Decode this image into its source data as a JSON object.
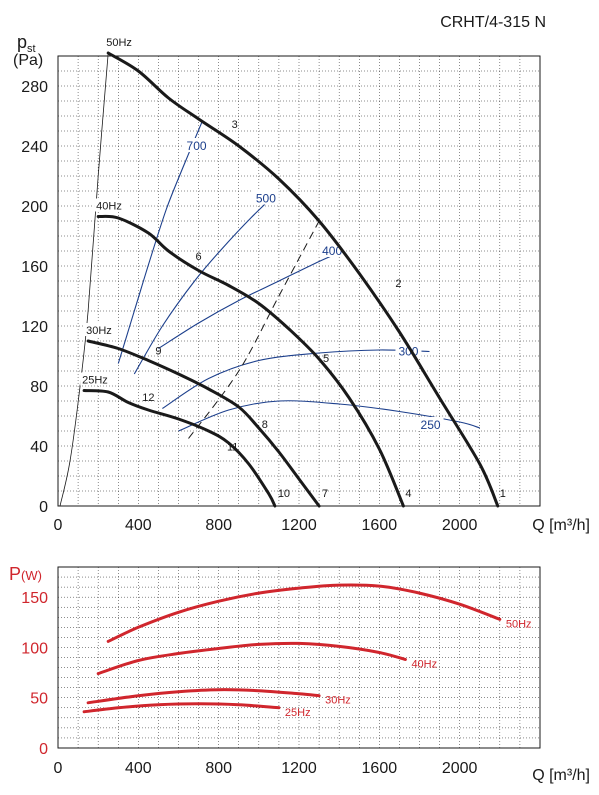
{
  "chart_data": [
    {
      "type": "line",
      "title": "CRHT/4-315 N",
      "ylabel_main": "p",
      "ylabel_sub": "st",
      "ylabel_unit": "(Pa)",
      "xlabel": "Q [m³/h]",
      "xlim": [
        0,
        2400
      ],
      "ylim": [
        0,
        300
      ],
      "x_ticks": [
        0,
        400,
        800,
        1200,
        1600,
        2000
      ],
      "y_ticks": [
        0,
        40,
        80,
        120,
        160,
        200,
        240,
        280
      ],
      "grid": true,
      "colors": {
        "curve": "#1a1a1a",
        "iso": "#1c3f8c",
        "grid": "#1a1a1a"
      },
      "series": [
        {
          "name": "50Hz",
          "points": [
            [
              250,
              302
            ],
            [
              400,
              290
            ],
            [
              550,
              272
            ],
            [
              700,
              258
            ],
            [
              900,
              240
            ],
            [
              1100,
              218
            ],
            [
              1300,
              190
            ],
            [
              1500,
              155
            ],
            [
              1700,
              116
            ],
            [
              1900,
              72
            ],
            [
              2100,
              28
            ],
            [
              2190,
              0
            ]
          ]
        },
        {
          "name": "40Hz",
          "points": [
            [
              200,
              193
            ],
            [
              300,
              192
            ],
            [
              450,
              182
            ],
            [
              550,
              170
            ],
            [
              700,
              157
            ],
            [
              850,
              147
            ],
            [
              1000,
              135
            ],
            [
              1150,
              118
            ],
            [
              1300,
              98
            ],
            [
              1450,
              72
            ],
            [
              1600,
              38
            ],
            [
              1720,
              0
            ]
          ]
        },
        {
          "name": "30Hz",
          "points": [
            [
              150,
              110
            ],
            [
              300,
              105
            ],
            [
              450,
              97
            ],
            [
              600,
              88
            ],
            [
              750,
              78
            ],
            [
              900,
              66
            ],
            [
              1000,
              52
            ],
            [
              1100,
              36
            ],
            [
              1200,
              18
            ],
            [
              1300,
              0
            ]
          ]
        },
        {
          "name": "25Hz",
          "points": [
            [
              130,
              77
            ],
            [
              250,
              76
            ],
            [
              350,
              69
            ],
            [
              450,
              64
            ],
            [
              600,
              58
            ],
            [
              750,
              50
            ],
            [
              850,
              42
            ],
            [
              950,
              28
            ],
            [
              1050,
              8
            ],
            [
              1080,
              0
            ]
          ]
        }
      ],
      "point_labels": [
        {
          "text": "1",
          "x": 2215,
          "y": 6
        },
        {
          "text": "2",
          "x": 1695,
          "y": 146
        },
        {
          "text": "3",
          "x": 880,
          "y": 252
        },
        {
          "text": "4",
          "x": 1745,
          "y": 6
        },
        {
          "text": "5",
          "x": 1335,
          "y": 96
        },
        {
          "text": "6",
          "x": 700,
          "y": 164
        },
        {
          "text": "7",
          "x": 1330,
          "y": 6
        },
        {
          "text": "8",
          "x": 1030,
          "y": 52
        },
        {
          "text": "9",
          "x": 500,
          "y": 101
        },
        {
          "text": "10",
          "x": 1125,
          "y": 6
        },
        {
          "text": "11",
          "x": 870,
          "y": 37
        },
        {
          "text": "12",
          "x": 450,
          "y": 70
        }
      ],
      "iso_lines": [
        {
          "label": "700",
          "label_x": 690,
          "label_y": 240,
          "points": [
            [
              300,
              95
            ],
            [
              380,
              130
            ],
            [
              460,
              165
            ],
            [
              540,
              198
            ],
            [
              620,
              225
            ],
            [
              720,
              257
            ]
          ]
        },
        {
          "label": "500",
          "label_x": 1035,
          "label_y": 205,
          "points": [
            [
              380,
              88
            ],
            [
              520,
              120
            ],
            [
              680,
              150
            ],
            [
              820,
              172
            ],
            [
              960,
              192
            ],
            [
              1100,
              210
            ]
          ]
        },
        {
          "label": "400",
          "label_x": 1365,
          "label_y": 170,
          "points": [
            [
              500,
              105
            ],
            [
              700,
              122
            ],
            [
              900,
              137
            ],
            [
              1100,
              150
            ],
            [
              1300,
              163
            ],
            [
              1420,
              170
            ]
          ]
        },
        {
          "label": "300",
          "label_x": 1745,
          "label_y": 103,
          "points": [
            [
              520,
              65
            ],
            [
              750,
              85
            ],
            [
              1000,
              97
            ],
            [
              1300,
              102
            ],
            [
              1600,
              104
            ],
            [
              1850,
              103
            ]
          ]
        },
        {
          "label": "250",
          "label_x": 1855,
          "label_y": 54,
          "points": [
            [
              600,
              50
            ],
            [
              850,
              64
            ],
            [
              1100,
              70
            ],
            [
              1400,
              68
            ],
            [
              1700,
              63
            ],
            [
              2000,
              56
            ],
            [
              2100,
              52
            ]
          ]
        }
      ],
      "system_line": {
        "points": [
          [
            650,
            45
          ],
          [
            900,
            90
          ],
          [
            1100,
            140
          ],
          [
            1300,
            190
          ]
        ]
      },
      "min_line": {
        "points": [
          [
            10,
            0
          ],
          [
            60,
            30
          ],
          [
            110,
            80
          ],
          [
            150,
            130
          ],
          [
            200,
            220
          ],
          [
            250,
            302
          ]
        ]
      }
    },
    {
      "type": "line",
      "ylabel_main": "P",
      "ylabel_unit": "(W)",
      "xlabel": "Q [m³/h]",
      "xlim": [
        0,
        2400
      ],
      "ylim": [
        0,
        180
      ],
      "x_ticks": [
        0,
        400,
        800,
        1200,
        1600,
        2000
      ],
      "y_ticks": [
        0,
        50,
        100,
        150
      ],
      "grid": true,
      "colors": {
        "curve": "#d0262d",
        "grid": "#1a1a1a"
      },
      "series": [
        {
          "name": "50Hz",
          "points": [
            [
              250,
              106
            ],
            [
              400,
              120
            ],
            [
              600,
              135
            ],
            [
              800,
              146
            ],
            [
              1000,
              154
            ],
            [
              1200,
              159
            ],
            [
              1400,
              162
            ],
            [
              1600,
              161
            ],
            [
              1800,
              154
            ],
            [
              2000,
              143
            ],
            [
              2200,
              128
            ]
          ]
        },
        {
          "name": "40Hz",
          "points": [
            [
              200,
              74
            ],
            [
              400,
              87
            ],
            [
              600,
              94
            ],
            [
              800,
              99
            ],
            [
              1000,
              103
            ],
            [
              1200,
              104
            ],
            [
              1400,
              101
            ],
            [
              1600,
              95
            ],
            [
              1730,
              88
            ]
          ]
        },
        {
          "name": "30Hz",
          "points": [
            [
              150,
              45
            ],
            [
              400,
              52
            ],
            [
              600,
              56
            ],
            [
              800,
              58
            ],
            [
              1000,
              57
            ],
            [
              1200,
              54
            ],
            [
              1300,
              52
            ]
          ]
        },
        {
          "name": "25Hz",
          "points": [
            [
              130,
              36
            ],
            [
              300,
              40
            ],
            [
              500,
              43
            ],
            [
              700,
              44
            ],
            [
              900,
              43
            ],
            [
              1100,
              40
            ]
          ]
        }
      ]
    }
  ]
}
